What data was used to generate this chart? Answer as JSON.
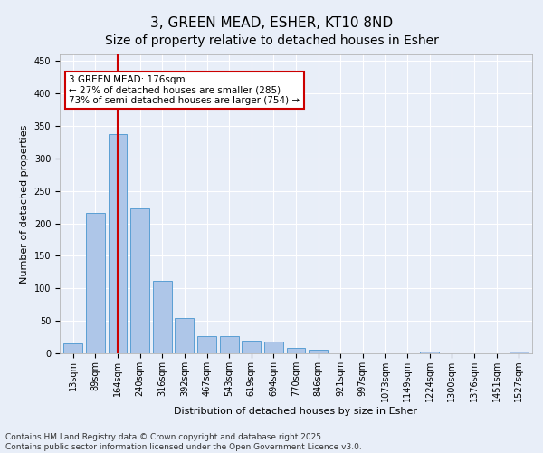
{
  "title1": "3, GREEN MEAD, ESHER, KT10 8ND",
  "title2": "Size of property relative to detached houses in Esher",
  "xlabel": "Distribution of detached houses by size in Esher",
  "ylabel": "Number of detached properties",
  "bar_labels": [
    "13sqm",
    "89sqm",
    "164sqm",
    "240sqm",
    "316sqm",
    "392sqm",
    "467sqm",
    "543sqm",
    "619sqm",
    "694sqm",
    "770sqm",
    "846sqm",
    "921sqm",
    "997sqm",
    "1073sqm",
    "1149sqm",
    "1224sqm",
    "1300sqm",
    "1376sqm",
    "1451sqm",
    "1527sqm"
  ],
  "bar_values": [
    15,
    216,
    338,
    223,
    112,
    54,
    27,
    26,
    20,
    18,
    9,
    6,
    0,
    0,
    0,
    0,
    3,
    0,
    0,
    0,
    3
  ],
  "bar_color": "#aec6e8",
  "bar_edge_color": "#5a9fd4",
  "vline_x": 2,
  "vline_color": "#cc0000",
  "annotation_text": "3 GREEN MEAD: 176sqm\n← 27% of detached houses are smaller (285)\n73% of semi-detached houses are larger (754) →",
  "annotation_box_color": "#ffffff",
  "annotation_box_edge_color": "#cc0000",
  "ylim": [
    0,
    460
  ],
  "yticks": [
    0,
    50,
    100,
    150,
    200,
    250,
    300,
    350,
    400,
    450
  ],
  "bg_color": "#e8eef8",
  "plot_bg_color": "#e8eef8",
  "footer_text": "Contains HM Land Registry data © Crown copyright and database right 2025.\nContains public sector information licensed under the Open Government Licence v3.0.",
  "title_fontsize": 11,
  "subtitle_fontsize": 10,
  "axis_label_fontsize": 8,
  "tick_fontsize": 7,
  "annotation_fontsize": 7.5,
  "footer_fontsize": 6.5
}
